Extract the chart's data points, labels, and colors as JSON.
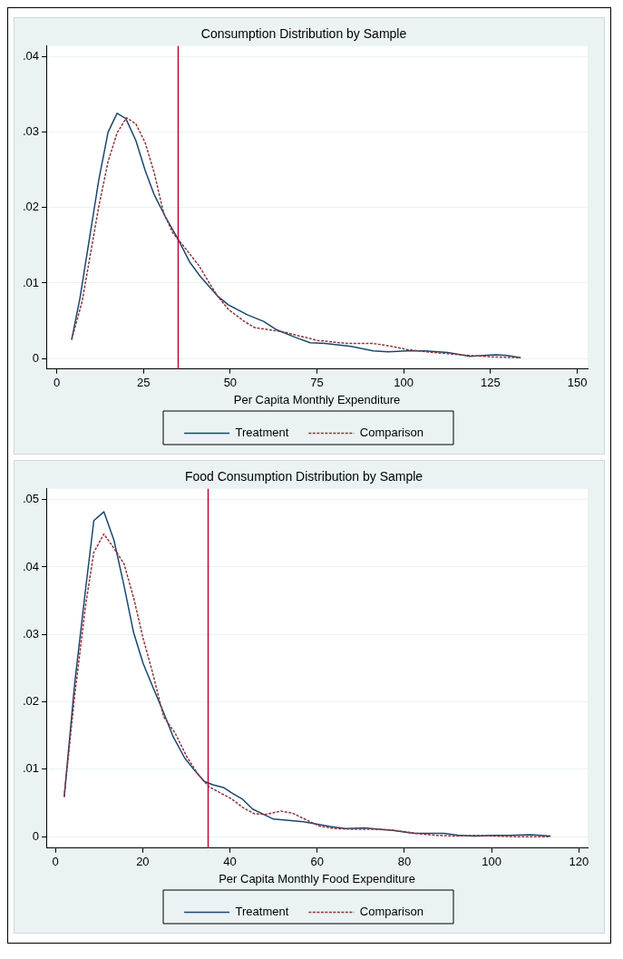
{
  "chart_data": [
    {
      "type": "line",
      "title": "Consumption Distribution by Sample",
      "xlabel": "Per Capita Monthly Expenditure",
      "xlim": [
        -3,
        153
      ],
      "xticks": [
        0,
        25,
        50,
        75,
        100,
        125,
        150
      ],
      "ylim": [
        -0.0014,
        0.0414
      ],
      "yticks": [
        0,
        {
          "value": 0.01,
          "label": ".01"
        },
        {
          "value": 0.02,
          "label": ".02"
        },
        {
          "value": 0.03,
          "label": ".03"
        },
        {
          "value": 0.04,
          "label": ".04"
        }
      ],
      "grid": "y",
      "legend": "bottom",
      "marker": "none",
      "series": [
        {
          "name": "Treatment",
          "color": "#1a476f",
          "line_style": "solid",
          "x": [
            4.3,
            6.7,
            12.1,
            14.8,
            17.4,
            19.9,
            22.8,
            25.5,
            28.1,
            31.3,
            35.1,
            38.3,
            41.5,
            46.3,
            49.5,
            54.9,
            59.7,
            63.4,
            68.8,
            73.0,
            77.3,
            84.8,
            91.2,
            95.5,
            100.9,
            106.2,
            112.6,
            119.0,
            126.5,
            129.7,
            133.7
          ],
          "values": [
            0.0025,
            0.008,
            0.0236,
            0.03,
            0.0325,
            0.0318,
            0.0289,
            0.0249,
            0.0217,
            0.0188,
            0.0157,
            0.0128,
            0.0108,
            0.0083,
            0.0071,
            0.0058,
            0.0049,
            0.0038,
            0.0028,
            0.0021,
            0.002,
            0.0016,
            0.001,
            0.0009,
            0.001,
            0.001,
            0.0008,
            0.0003,
            0.0005,
            0.0004,
            0.0001
          ]
        },
        {
          "name": "Comparison",
          "color": "#90353b",
          "line_style": "dashed",
          "x": [
            4.3,
            7.3,
            12.1,
            14.8,
            17.4,
            20.1,
            22.8,
            25.5,
            28.1,
            30.8,
            33.5,
            36.2,
            41.0,
            43.6,
            46.3,
            49.5,
            53.8,
            57.0,
            61.3,
            65.6,
            69.8,
            75.2,
            79.5,
            83.7,
            91.2,
            96.6,
            100.9,
            106.2,
            113.7,
            119.0,
            126.5,
            133.7
          ],
          "values": [
            0.0025,
            0.0075,
            0.0201,
            0.0261,
            0.0299,
            0.0319,
            0.0311,
            0.0286,
            0.0246,
            0.0193,
            0.0166,
            0.0151,
            0.0123,
            0.0103,
            0.0083,
            0.0065,
            0.005,
            0.0041,
            0.0038,
            0.0035,
            0.003,
            0.0024,
            0.0022,
            0.002,
            0.002,
            0.0016,
            0.0012,
            0.0009,
            0.0006,
            0.0004,
            0.0002,
            0.0001
          ]
        }
      ],
      "ref_lines": [
        {
          "axis": "x",
          "value": 35,
          "color": "#c10534"
        }
      ]
    },
    {
      "type": "line",
      "title": "Food Consumption Distribution by Sample",
      "xlabel": "Per Capita Monthly Food Expenditure",
      "xlim": [
        -2.1,
        122
      ],
      "xticks": [
        0,
        20,
        40,
        60,
        80,
        100,
        120
      ],
      "ylim": [
        -0.0017,
        0.0516
      ],
      "yticks": [
        0,
        {
          "value": 0.01,
          "label": ".01"
        },
        {
          "value": 0.02,
          "label": ".02"
        },
        {
          "value": 0.03,
          "label": ".03"
        },
        {
          "value": 0.04,
          "label": ".04"
        },
        {
          "value": 0.05,
          "label": ".05"
        }
      ],
      "grid": "y",
      "legend": "bottom",
      "marker": "none",
      "series": [
        {
          "name": "Treatment",
          "color": "#1a476f",
          "line_style": "solid",
          "x": [
            2.0,
            4.4,
            6.9,
            8.8,
            11.1,
            13.4,
            15.7,
            17.9,
            20.1,
            22.2,
            24.8,
            27.0,
            29.6,
            31.8,
            34.1,
            36.1,
            38.5,
            40.4,
            42.8,
            45.2,
            47.4,
            50.0,
            53.5,
            56.9,
            60.4,
            63.0,
            66.5,
            70.8,
            74.3,
            77.8,
            82.1,
            85.6,
            89.1,
            92.5,
            96.0,
            100.3,
            103.8,
            109.0,
            113.5
          ],
          "values": [
            0.0059,
            0.0227,
            0.0367,
            0.0469,
            0.0482,
            0.044,
            0.0373,
            0.0303,
            0.0257,
            0.0224,
            0.0184,
            0.0148,
            0.0117,
            0.0099,
            0.0082,
            0.0077,
            0.0073,
            0.0065,
            0.0056,
            0.0041,
            0.0034,
            0.0026,
            0.0024,
            0.0022,
            0.0018,
            0.0015,
            0.0012,
            0.0013,
            0.0011,
            0.0009,
            0.0005,
            0.0005,
            0.0005,
            0.0002,
            0.0001,
            0.0002,
            0.0002,
            0.0003,
            0.0001
          ]
        },
        {
          "name": "Comparison",
          "color": "#90353b",
          "line_style": "dashed",
          "x": [
            2.0,
            4.4,
            6.9,
            8.8,
            11.1,
            13.4,
            15.7,
            17.9,
            20.1,
            22.2,
            24.8,
            27.4,
            30.0,
            32.6,
            35.2,
            37.8,
            40.4,
            43.0,
            45.6,
            48.2,
            51.7,
            54.3,
            57.8,
            60.4,
            63.9,
            68.2,
            72.6,
            76.9,
            80.4,
            83.8,
            87.3,
            91.7,
            96.0,
            100.3,
            105.5,
            109.0,
            113.5
          ],
          "values": [
            0.0059,
            0.0209,
            0.0343,
            0.0422,
            0.0449,
            0.0428,
            0.0405,
            0.0355,
            0.0294,
            0.0245,
            0.0178,
            0.0154,
            0.012,
            0.0093,
            0.0074,
            0.0065,
            0.0056,
            0.0043,
            0.0034,
            0.0033,
            0.0038,
            0.0035,
            0.0024,
            0.0016,
            0.0012,
            0.0011,
            0.0011,
            0.001,
            0.0007,
            0.0004,
            0.0002,
            0.0001,
            0.0002,
            0.0001,
            0,
            0,
            0
          ]
        }
      ],
      "ref_lines": [
        {
          "axis": "x",
          "value": 35,
          "color": "#c10534"
        }
      ]
    }
  ]
}
